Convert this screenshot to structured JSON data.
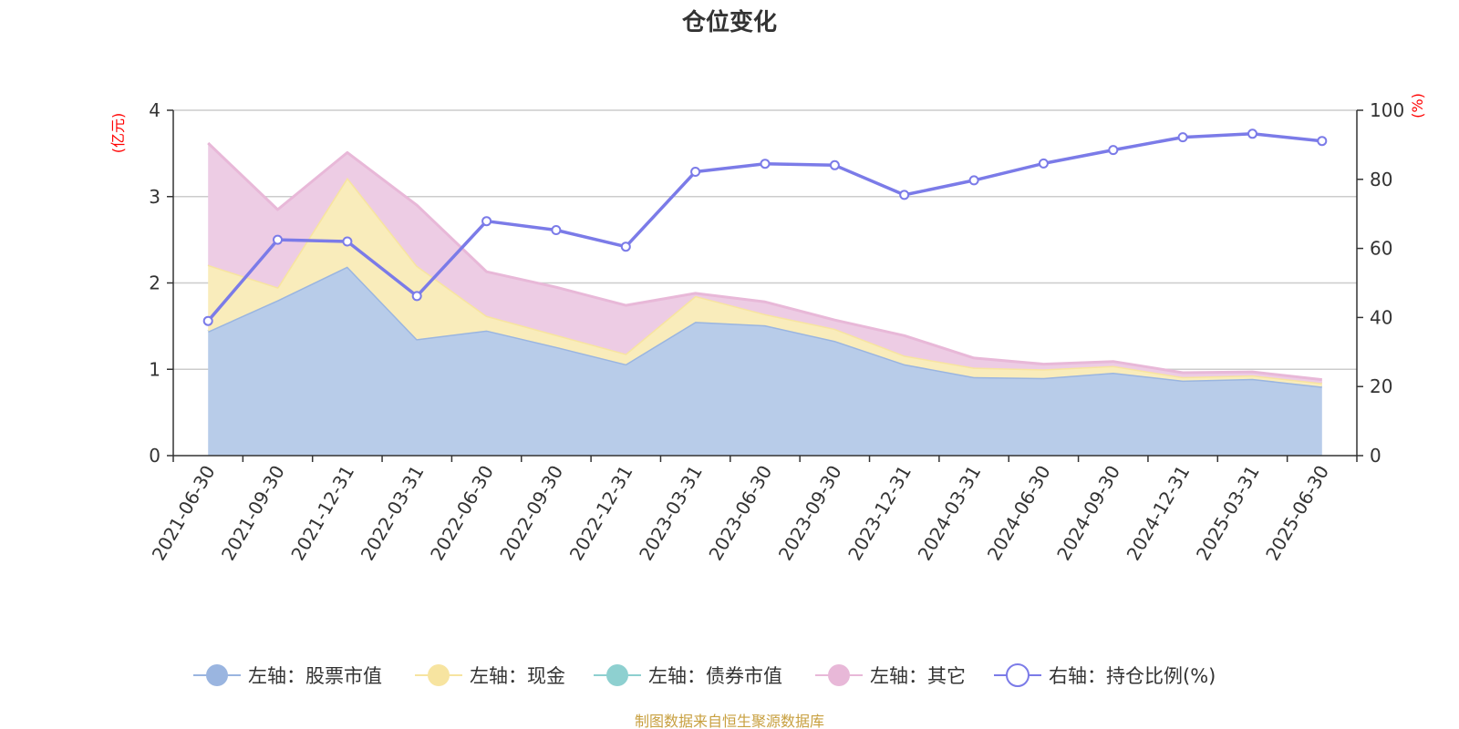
{
  "chart_data": {
    "type": "area",
    "title": "仓位变化",
    "categories": [
      "2021-06-30",
      "2021-09-30",
      "2021-12-31",
      "2022-03-31",
      "2022-06-30",
      "2022-09-30",
      "2022-12-31",
      "2023-03-31",
      "2023-06-30",
      "2023-09-30",
      "2023-12-31",
      "2024-03-31",
      "2024-06-30",
      "2024-09-30",
      "2024-12-31",
      "2025-03-31",
      "2025-06-30"
    ],
    "left_axis": {
      "unit": "(亿元)",
      "ylim": [
        0,
        4
      ],
      "ticks": [
        "0",
        "1",
        "2",
        "3",
        "4"
      ]
    },
    "right_axis": {
      "unit": "(%)",
      "ylim": [
        0,
        100
      ],
      "ticks": [
        "0",
        "20",
        "40",
        "60",
        "80",
        "100"
      ]
    },
    "grid": true,
    "legend_position": "bottom",
    "series": [
      {
        "name": "左轴：股票市值",
        "axis": "left",
        "stack": true,
        "color": "#9ab5e0",
        "fill": "#b8cce9",
        "values": [
          1.44,
          1.8,
          2.19,
          1.35,
          1.45,
          1.26,
          1.06,
          1.55,
          1.51,
          1.33,
          1.06,
          0.91,
          0.9,
          0.96,
          0.87,
          0.89,
          0.8
        ]
      },
      {
        "name": "左轴：现金",
        "axis": "left",
        "stack": true,
        "color": "#f7e4a0",
        "fill": "#f9ecbb",
        "values": [
          0.77,
          0.15,
          1.03,
          0.85,
          0.17,
          0.14,
          0.12,
          0.3,
          0.13,
          0.14,
          0.1,
          0.11,
          0.1,
          0.08,
          0.04,
          0.04,
          0.04
        ]
      },
      {
        "name": "左轴：债券市值",
        "axis": "left",
        "stack": true,
        "color": "#8ed0d0",
        "fill": "#b6e0e0",
        "values": [
          0,
          0,
          0,
          0,
          0,
          0,
          0,
          0,
          0,
          0,
          0,
          0,
          0,
          0,
          0,
          0,
          0
        ]
      },
      {
        "name": "左轴：其它",
        "axis": "left",
        "stack": true,
        "color": "#e8b8d8",
        "fill": "#edcce4",
        "values": [
          1.41,
          0.9,
          0.29,
          0.7,
          0.51,
          0.55,
          0.56,
          0.03,
          0.14,
          0.1,
          0.23,
          0.11,
          0.06,
          0.05,
          0.05,
          0.04,
          0.04
        ]
      },
      {
        "name": "右轴：持仓比例(%)",
        "axis": "right",
        "type": "line",
        "color": "#7b7be8",
        "values": [
          39.0,
          62.5,
          62.0,
          46.2,
          67.9,
          65.3,
          60.5,
          82.2,
          84.5,
          84.1,
          75.5,
          79.7,
          84.6,
          88.5,
          92.2,
          93.2,
          91.1
        ]
      }
    ],
    "source_note": "制图数据来自恒生聚源数据库"
  }
}
